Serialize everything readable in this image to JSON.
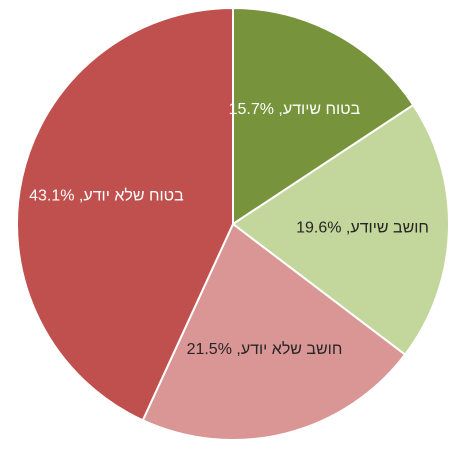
{
  "chart_data": {
    "type": "pie",
    "values": [
      15.7,
      19.6,
      21.5,
      43.1
    ],
    "value_labels": [
      "בטוח שיודע, 15.7%",
      "חושב שיודע, 19.6%",
      "חושב שלא יודע, 21.5%",
      "בטוח שלא יודע, 43.1%"
    ],
    "colors": [
      "#77933c",
      "#c3d69b",
      "#d99694",
      "#c0504d"
    ]
  }
}
